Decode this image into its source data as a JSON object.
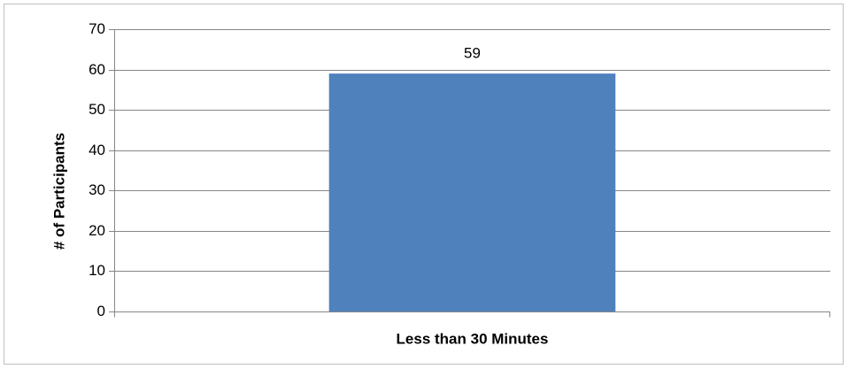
{
  "chart_data": {
    "type": "bar",
    "categories": [
      "Less than 30 Minutes"
    ],
    "values": [
      59
    ],
    "data_labels": [
      "59"
    ],
    "title": "",
    "xlabel": "",
    "ylabel": "# of Participants",
    "ylim": [
      0,
      70
    ],
    "yticks": [
      0,
      10,
      20,
      30,
      40,
      50,
      60,
      70
    ],
    "grid": true,
    "legend": "none",
    "colors": {
      "bar": "#4f81bd",
      "grid": "#868686",
      "axis": "#868686",
      "frame": "#bfbfbf"
    }
  }
}
